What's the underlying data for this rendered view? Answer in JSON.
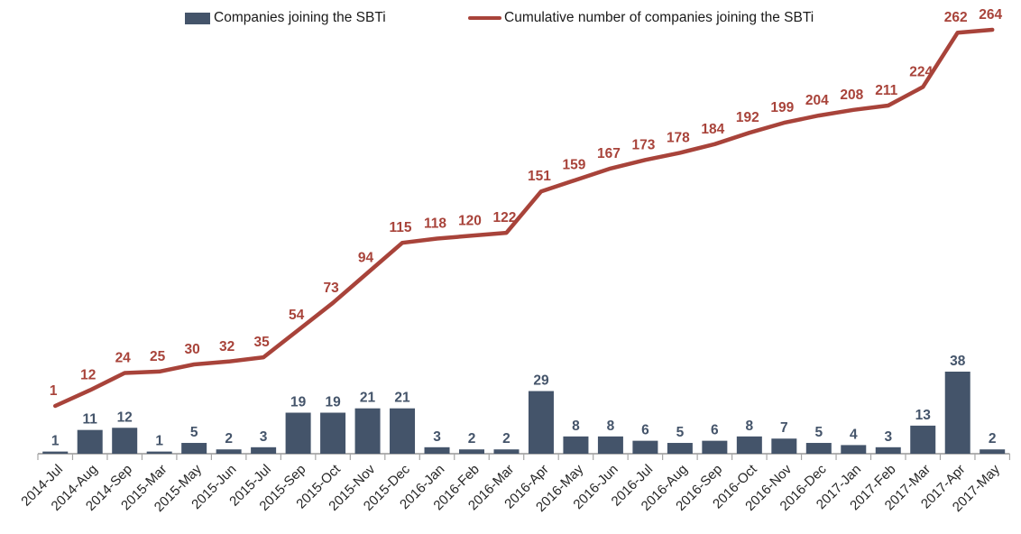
{
  "legend": {
    "bar_series_label": "Companies joining the SBTi",
    "line_series_label": "Cumulative number of companies joining the SBTi"
  },
  "colors": {
    "bar": "#44546A",
    "bar_label": "#44546A",
    "line": "#A8433A",
    "line_label": "#A8433A",
    "axis": "#A6A6A6",
    "x_tick_label": "#262626",
    "background": "#FFFFFF"
  },
  "chart_data": {
    "type": "bar",
    "subtype": "bar-line-combo",
    "title": "",
    "xlabel": "",
    "ylabel": "",
    "grid": false,
    "legend_position": "top",
    "value_axes_visible": false,
    "data_labels": "all points labeled",
    "categories": [
      "2014-Jul",
      "2014-Aug",
      "2014-Sep",
      "2015-Mar",
      "2015-May",
      "2015-Jun",
      "2015-Jul",
      "2015-Sep",
      "2015-Oct",
      "2015-Nov",
      "2015-Dec",
      "2016-Jan",
      "2016-Feb",
      "2016-Mar",
      "2016-Apr",
      "2016-May",
      "2016-Jun",
      "2016-Jul",
      "2016-Aug",
      "2016-Sep",
      "2016-Oct",
      "2016-Nov",
      "2016-Dec",
      "2017-Jan",
      "2017-Feb",
      "2017-Mar",
      "2017-Apr",
      "2017-May"
    ],
    "series": [
      {
        "name": "Companies joining the SBTi",
        "type": "bar",
        "values": [
          1,
          11,
          12,
          1,
          5,
          2,
          3,
          19,
          19,
          21,
          21,
          3,
          2,
          2,
          29,
          8,
          8,
          6,
          5,
          6,
          8,
          7,
          5,
          4,
          3,
          13,
          38,
          2
        ]
      },
      {
        "name": "Cumulative number of companies joining the SBTi",
        "type": "line",
        "values": [
          1,
          12,
          24,
          25,
          30,
          32,
          35,
          54,
          73,
          94,
          115,
          118,
          120,
          122,
          151,
          159,
          167,
          173,
          178,
          184,
          192,
          199,
          204,
          208,
          211,
          224,
          262,
          264
        ]
      }
    ]
  }
}
